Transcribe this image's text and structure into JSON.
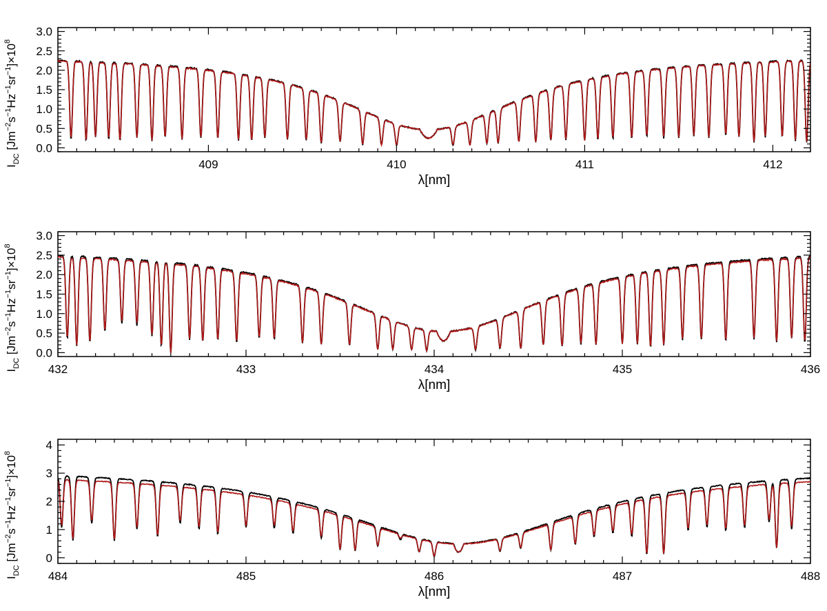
{
  "chart_data": [
    {
      "type": "line",
      "xlabel": "λ[nm]",
      "ylabel": "I_DC [Jm^-2 s^-1 Hz^-1 sr^-1]×10^8",
      "ylabel_parts": {
        "i": "I",
        "sub": "DC",
        "pre": " [Jm",
        "e1": "−2",
        "s": "s",
        "e2": "−1",
        "hz": "Hz",
        "e3": "−1",
        "sr": "sr",
        "e4": "−1",
        "post": "]×10",
        "e5": "8"
      },
      "xlim": [
        408.2,
        412.2
      ],
      "ylim": [
        -0.1,
        3.1
      ],
      "xticks": [
        409,
        410,
        411,
        412
      ],
      "yticks": [
        0.0,
        0.5,
        1.0,
        1.5,
        2.0,
        2.5,
        3.0
      ],
      "ytick_labels": [
        "0.0",
        "0.5",
        "1.0",
        "1.5",
        "2.0",
        "2.5",
        "3.0"
      ],
      "line_center": 410.17,
      "line_depth": 0.25,
      "line_width": 0.1,
      "line_wings": 0.6,
      "continuum": {
        "black": 2.42,
        "red": 2.4
      },
      "absorption_lines": [
        [
          408.27,
          0.25
        ],
        [
          408.35,
          0.2
        ],
        [
          408.4,
          0.3
        ],
        [
          408.47,
          0.25
        ],
        [
          408.53,
          0.2
        ],
        [
          408.62,
          0.28
        ],
        [
          408.7,
          0.2
        ],
        [
          408.77,
          0.3
        ],
        [
          408.86,
          0.25
        ],
        [
          408.96,
          0.3
        ],
        [
          409.05,
          0.3
        ],
        [
          409.16,
          0.25
        ],
        [
          409.23,
          0.25
        ],
        [
          409.3,
          0.35
        ],
        [
          409.42,
          0.3
        ],
        [
          409.52,
          0.3
        ],
        [
          409.6,
          0.2
        ],
        [
          409.7,
          0.3
        ],
        [
          409.82,
          0.2
        ],
        [
          409.92,
          0.25
        ],
        [
          410.0,
          0.25
        ],
        [
          410.3,
          0.3
        ],
        [
          410.39,
          0.25
        ],
        [
          410.48,
          0.3
        ],
        [
          410.54,
          0.3
        ],
        [
          410.65,
          0.3
        ],
        [
          410.74,
          0.25
        ],
        [
          410.82,
          0.3
        ],
        [
          410.9,
          0.3
        ],
        [
          411.0,
          0.25
        ],
        [
          411.07,
          0.3
        ],
        [
          411.15,
          0.3
        ],
        [
          411.25,
          0.3
        ],
        [
          411.33,
          0.35
        ],
        [
          411.42,
          0.3
        ],
        [
          411.5,
          0.3
        ],
        [
          411.58,
          0.35
        ],
        [
          411.66,
          0.3
        ],
        [
          411.75,
          0.35
        ],
        [
          411.82,
          0.3
        ],
        [
          411.9,
          0.15
        ],
        [
          411.96,
          0.3
        ],
        [
          412.05,
          0.3
        ],
        [
          412.12,
          0.2
        ],
        [
          412.18,
          0.15
        ]
      ],
      "series": [
        {
          "name": "observed",
          "color": "#000000"
        },
        {
          "name": "synthetic",
          "color": "#b01818"
        }
      ]
    },
    {
      "type": "line",
      "xlabel": "λ[nm]",
      "ylabel": "I_DC [Jm^-2 s^-1 Hz^-1 sr^-1]×10^8",
      "ylabel_parts": {
        "i": "I",
        "sub": "DC",
        "pre": " [Jm",
        "e1": "−2",
        "s": "s",
        "e2": "−1",
        "hz": "Hz",
        "e3": "−1",
        "sr": "sr",
        "e4": "−1",
        "post": "]×10",
        "e5": "8"
      },
      "xlim": [
        432.0,
        436.0
      ],
      "ylim": [
        -0.1,
        3.1
      ],
      "xticks": [
        432,
        433,
        434,
        435,
        436
      ],
      "yticks": [
        0.0,
        0.5,
        1.0,
        1.5,
        2.0,
        2.5,
        3.0
      ],
      "ytick_labels": [
        "0.0",
        "0.5",
        "1.0",
        "1.5",
        "2.0",
        "2.5",
        "3.0"
      ],
      "line_center": 434.05,
      "line_depth": 0.3,
      "line_width": 0.08,
      "line_wings": 0.7,
      "continuum": {
        "black": 2.72,
        "red": 2.68
      },
      "absorption_lines": [
        [
          432.05,
          0.4
        ],
        [
          432.1,
          0.2
        ],
        [
          432.17,
          0.3
        ],
        [
          432.25,
          0.6
        ],
        [
          432.34,
          0.85
        ],
        [
          432.42,
          0.8
        ],
        [
          432.5,
          0.5
        ],
        [
          432.55,
          0.2
        ],
        [
          432.6,
          0.0
        ],
        [
          432.7,
          0.4
        ],
        [
          432.77,
          0.35
        ],
        [
          432.85,
          0.4
        ],
        [
          432.95,
          0.35
        ],
        [
          433.07,
          0.5
        ],
        [
          433.15,
          0.5
        ],
        [
          433.3,
          0.4
        ],
        [
          433.4,
          0.35
        ],
        [
          433.55,
          0.4
        ],
        [
          433.7,
          0.2
        ],
        [
          433.78,
          0.25
        ],
        [
          433.88,
          0.3
        ],
        [
          433.96,
          0.25
        ],
        [
          434.22,
          0.3
        ],
        [
          434.35,
          0.3
        ],
        [
          434.46,
          0.25
        ],
        [
          434.58,
          0.4
        ],
        [
          434.68,
          0.3
        ],
        [
          434.78,
          0.35
        ],
        [
          434.86,
          0.3
        ],
        [
          435.0,
          0.3
        ],
        [
          435.08,
          0.3
        ],
        [
          435.15,
          0.2
        ],
        [
          435.22,
          0.25
        ],
        [
          435.32,
          0.4
        ],
        [
          435.42,
          0.4
        ],
        [
          435.55,
          0.35
        ],
        [
          435.7,
          0.4
        ],
        [
          435.82,
          0.3
        ],
        [
          435.9,
          0.4
        ],
        [
          435.97,
          0.3
        ]
      ],
      "series": [
        {
          "name": "observed",
          "color": "#000000"
        },
        {
          "name": "synthetic",
          "color": "#b01818"
        }
      ]
    },
    {
      "type": "line",
      "xlabel": "λ[nm]",
      "ylabel": "I_DC [Jm^-2 s^-1 Hz^-1 sr^-1]×10^8",
      "ylabel_parts": {
        "i": "I",
        "sub": "DC",
        "pre": " [Jm",
        "e1": "−2",
        "s": "s",
        "e2": "−1",
        "hz": "Hz",
        "e3": "−1",
        "sr": "sr",
        "e4": "−1",
        "post": "]×10",
        "e5": "8"
      },
      "xlim": [
        484.0,
        488.0
      ],
      "ylim": [
        -0.2,
        4.2
      ],
      "xticks": [
        484,
        485,
        486,
        487,
        488
      ],
      "yticks": [
        0,
        1,
        2,
        3,
        4
      ],
      "ytick_labels": [
        "0",
        "1",
        "2",
        "3",
        "4"
      ],
      "line_center": 486.13,
      "line_depth": 0.2,
      "line_width": 0.06,
      "line_wings": 0.8,
      "continuum": {
        "black": 3.25,
        "red": 3.1
      },
      "absorption_lines": [
        [
          484.02,
          1.2
        ],
        [
          484.08,
          0.7
        ],
        [
          484.18,
          1.4
        ],
        [
          484.3,
          0.7
        ],
        [
          484.42,
          1.2
        ],
        [
          484.53,
          0.9
        ],
        [
          484.65,
          1.5
        ],
        [
          484.75,
          1.3
        ],
        [
          484.85,
          1.1
        ],
        [
          485.0,
          1.5
        ],
        [
          485.15,
          1.6
        ],
        [
          485.25,
          1.4
        ],
        [
          485.4,
          1.3
        ],
        [
          485.5,
          0.6
        ],
        [
          485.58,
          0.6
        ],
        [
          485.7,
          1.2
        ],
        [
          485.82,
          2.4
        ],
        [
          485.92,
          1.0
        ],
        [
          486.0,
          0.3
        ],
        [
          486.35,
          1.1
        ],
        [
          486.46,
          1.2
        ],
        [
          486.62,
          0.7
        ],
        [
          486.75,
          1.0
        ],
        [
          486.85,
          1.4
        ],
        [
          486.95,
          1.5
        ],
        [
          487.05,
          1.2
        ],
        [
          487.13,
          0.2
        ],
        [
          487.22,
          0.2
        ],
        [
          487.35,
          1.3
        ],
        [
          487.45,
          1.4
        ],
        [
          487.55,
          1.2
        ],
        [
          487.65,
          1.3
        ],
        [
          487.78,
          1.5
        ],
        [
          487.82,
          0.4
        ],
        [
          487.9,
          1.2
        ]
      ],
      "series": [
        {
          "name": "observed",
          "color": "#000000"
        },
        {
          "name": "synthetic",
          "color": "#b01818"
        }
      ]
    }
  ]
}
